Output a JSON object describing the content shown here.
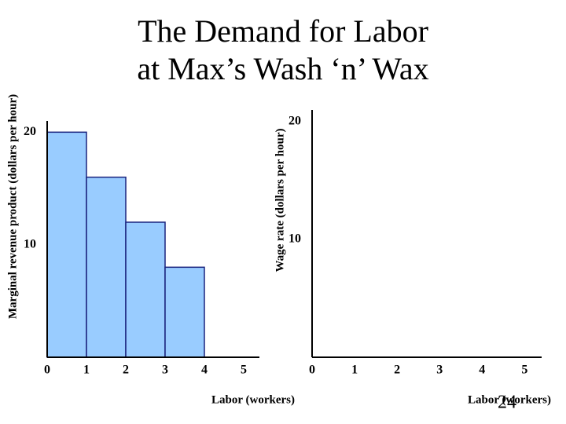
{
  "title": [
    "The Demand for Labor",
    "at Max’s Wash ‘n’ Wax"
  ],
  "page_number": 24,
  "chart_data": [
    {
      "type": "histogram",
      "ylabel": "Marginal revenue product (dollars per hour)",
      "xlabel": "Labor (workers)",
      "bins": [
        0,
        1,
        2,
        3,
        4
      ],
      "values": [
        20,
        16,
        12,
        8
      ],
      "color": "#99ccff",
      "xlim": [
        0,
        5.4
      ],
      "xticks": [
        0,
        1,
        2,
        3,
        4,
        5
      ],
      "ylim": [
        0,
        21
      ],
      "yticks": [
        10,
        20
      ]
    },
    {
      "type": "line",
      "ylabel": "Wage rate (dollars per hour)",
      "xlabel": "Labor (workers)",
      "xlim": [
        0,
        5.4
      ],
      "xticks": [
        0,
        1,
        2,
        3,
        4,
        5
      ],
      "ylim": [
        0,
        21
      ],
      "yticks": [
        10,
        20
      ]
    }
  ]
}
